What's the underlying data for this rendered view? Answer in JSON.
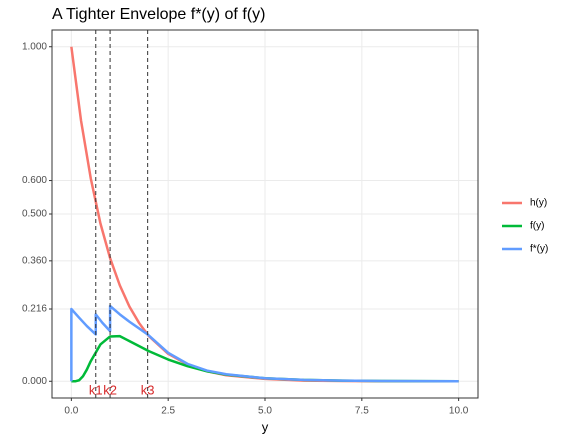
{
  "chart_data": {
    "type": "line",
    "title": "A Tighter Envelope f*(y) of f(y)",
    "x_label": "y",
    "xlim": [
      -0.5,
      10.5
    ],
    "ylim": [
      -0.05,
      1.05
    ],
    "xticks": [
      {
        "value": 0,
        "label": "0.0"
      },
      {
        "value": 2.5,
        "label": "2.5"
      },
      {
        "value": 5,
        "label": "5.0"
      },
      {
        "value": 7.5,
        "label": "7.5"
      },
      {
        "value": 10,
        "label": "10.0"
      }
    ],
    "yticks": [
      {
        "value": 0,
        "label": "0.000"
      },
      {
        "value": 0.216,
        "label": "0.216"
      },
      {
        "value": 0.36,
        "label": "0.360"
      },
      {
        "value": 0.5,
        "label": "0.500"
      },
      {
        "value": 0.6,
        "label": "0.600"
      },
      {
        "value": 1,
        "label": "1.000"
      }
    ],
    "grid": true,
    "legend": "right",
    "reference_lines": {
      "x": [
        0.63,
        1,
        1.97
      ],
      "labels": [
        "k1",
        "k2",
        "k3"
      ],
      "color": "#d62728"
    },
    "series": [
      {
        "name": "h(y)",
        "color": "#F8766D",
        "x": [
          0,
          0.25,
          0.5,
          0.75,
          1,
          1.25,
          1.5,
          1.75,
          2,
          2.5,
          3,
          3.5,
          4,
          5,
          6,
          7,
          8,
          10
        ],
        "values": [
          1,
          0.779,
          0.607,
          0.472,
          0.368,
          0.287,
          0.223,
          0.174,
          0.135,
          0.082,
          0.05,
          0.03,
          0.018,
          0.007,
          0.002,
          0.001,
          0,
          0
        ]
      },
      {
        "name": "f(y)",
        "color": "#00BA38",
        "x": [
          0,
          0.1,
          0.2,
          0.3,
          0.4,
          0.5,
          0.75,
          1,
          1.25,
          1.5,
          2,
          2.5,
          3,
          3.5,
          4,
          5,
          6,
          7,
          8,
          10
        ],
        "values": [
          0,
          0,
          0.003,
          0.015,
          0.035,
          0.06,
          0.11,
          0.134,
          0.135,
          0.12,
          0.09,
          0.065,
          0.045,
          0.03,
          0.02,
          0.009,
          0.004,
          0.002,
          0.001,
          0
        ]
      },
      {
        "name": "f*(y)",
        "color": "#619CFF",
        "x": [
          0,
          0,
          0.2,
          0.4,
          0.63,
          0.63,
          0.8,
          1,
          1,
          1.25,
          1.5,
          1.75,
          1.97,
          2.5,
          3,
          3.5,
          4,
          5,
          6,
          7,
          8,
          10
        ],
        "values": [
          0,
          0.216,
          0.19,
          0.165,
          0.14,
          0.2,
          0.175,
          0.15,
          0.225,
          0.2,
          0.178,
          0.158,
          0.14,
          0.085,
          0.052,
          0.032,
          0.021,
          0.009,
          0.004,
          0.002,
          0.001,
          0
        ]
      }
    ]
  }
}
